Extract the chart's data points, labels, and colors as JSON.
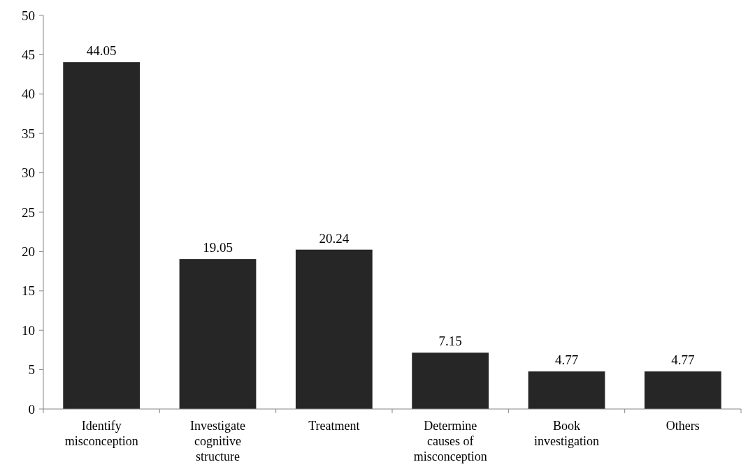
{
  "chart_data": {
    "type": "bar",
    "categories": [
      "Identify misconception",
      "Investigate cognitive structure",
      "Treatment",
      "Determine causes of misconception",
      "Book investigation",
      "Others"
    ],
    "values": [
      44.05,
      19.05,
      20.24,
      7.15,
      4.77,
      4.77
    ],
    "color": "#262626",
    "ylim": [
      0,
      50
    ],
    "yticks": [
      0,
      5,
      10,
      15,
      20,
      25,
      30,
      35,
      40,
      45,
      50
    ],
    "data_labels": true
  }
}
